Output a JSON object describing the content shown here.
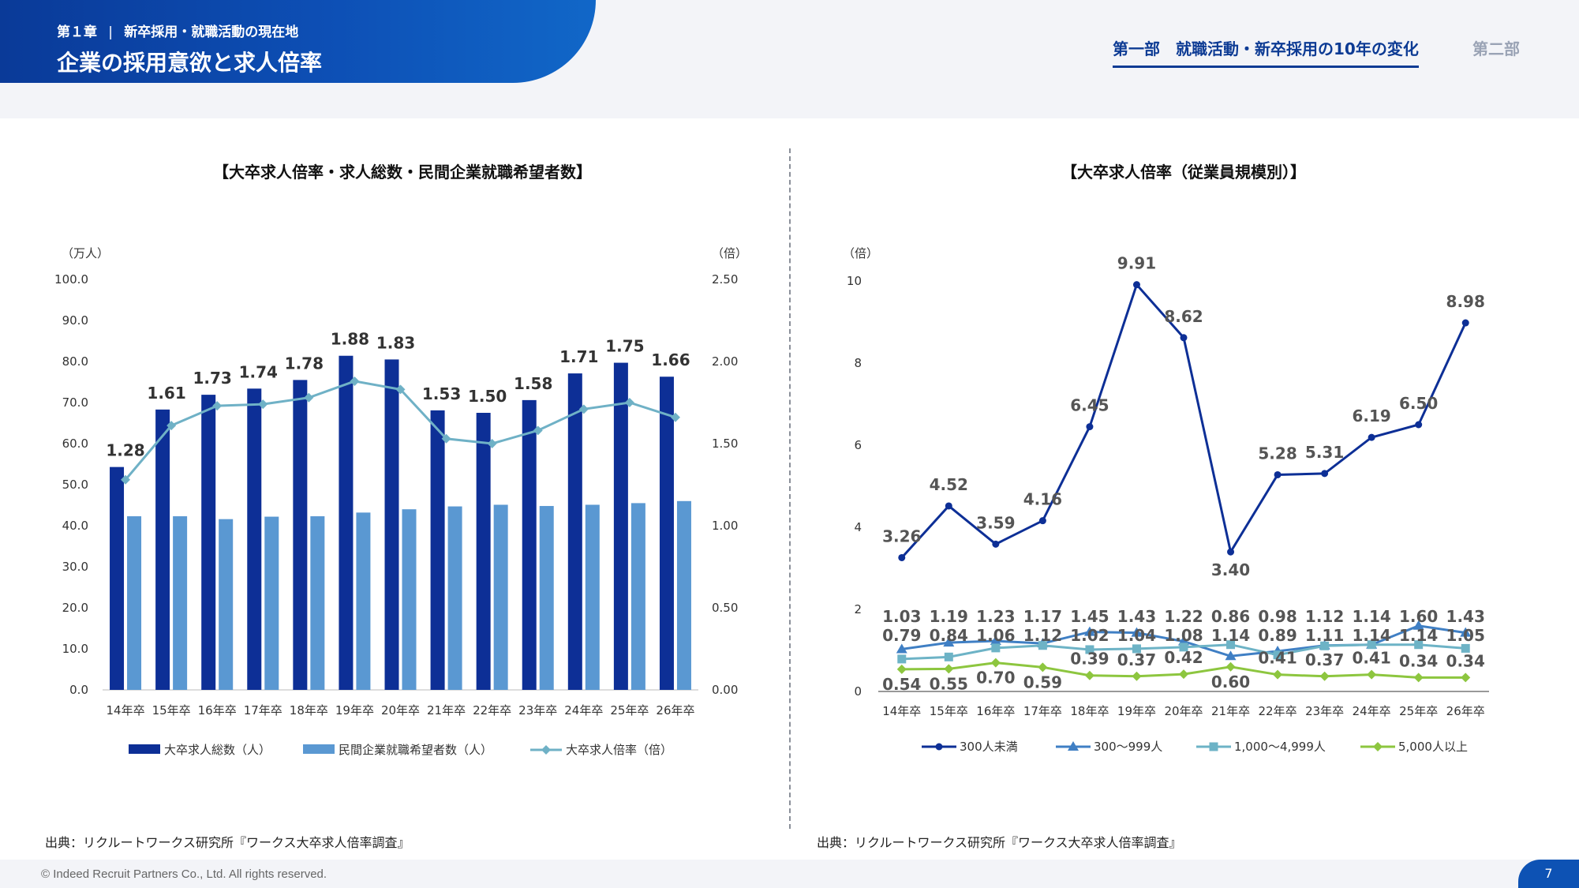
{
  "header": {
    "chapter": "第１章",
    "section": "新卒採用・就職活動の現在地",
    "title": "企業の採用意欲と求人倍率",
    "nav_active": "第一部　就職活動・新卒採用の10年の変化",
    "nav_inactive": "第二部"
  },
  "colors": {
    "bar_dark": "#0d2f96",
    "bar_light": "#5a98d2",
    "ratio_line": "#6fb1c6",
    "s300": "#0d2f96",
    "s999": "#3f7fc4",
    "s4999": "#6db3c6",
    "s5000": "#8dc63f"
  },
  "chart_data": [
    {
      "type": "bar",
      "title": "【大卒求人倍率・求人総数・民間企業就職希望者数】",
      "ylabel_left": "（万人）",
      "ylabel_right": "（倍）",
      "ylim_left": [
        0,
        100
      ],
      "ylim_right": [
        0,
        2.5
      ],
      "yticks_left": [
        "0.0",
        "10.0",
        "20.0",
        "30.0",
        "40.0",
        "50.0",
        "60.0",
        "70.0",
        "80.0",
        "90.0",
        "100.0"
      ],
      "yticks_right": [
        "0.00",
        "0.50",
        "1.00",
        "1.50",
        "2.00",
        "2.50"
      ],
      "categories": [
        "14年卒",
        "15年卒",
        "16年卒",
        "17年卒",
        "18年卒",
        "19年卒",
        "20年卒",
        "21年卒",
        "22年卒",
        "23年卒",
        "24年卒",
        "25年卒",
        "26年卒"
      ],
      "series": [
        {
          "name": "大卒求人総数（人）",
          "kind": "bar",
          "axis": "left",
          "values": [
            54.3,
            68.3,
            71.9,
            73.4,
            75.5,
            81.4,
            80.5,
            68.1,
            67.5,
            70.6,
            77.1,
            79.7,
            76.3
          ]
        },
        {
          "name": "民間企業就職希望者数（人）",
          "kind": "bar",
          "axis": "left",
          "values": [
            42.3,
            42.3,
            41.6,
            42.2,
            42.3,
            43.2,
            44.0,
            44.7,
            45.1,
            44.8,
            45.1,
            45.5,
            46.0
          ]
        },
        {
          "name": "大卒求人倍率（倍）",
          "kind": "line",
          "axis": "right",
          "values": [
            1.28,
            1.61,
            1.73,
            1.74,
            1.78,
            1.88,
            1.83,
            1.53,
            1.5,
            1.58,
            1.71,
            1.75,
            1.66
          ],
          "labels": [
            "1.28",
            "1.61",
            "1.73",
            "1.74",
            "1.78",
            "1.88",
            "1.83",
            "1.53",
            "1.50",
            "1.58",
            "1.71",
            "1.75",
            "1.66"
          ]
        }
      ]
    },
    {
      "type": "line",
      "title": "【大卒求人倍率（従業員規模別）】",
      "ylabel": "（倍）",
      "ylim": [
        0,
        10
      ],
      "yticks": [
        "0",
        "2",
        "4",
        "6",
        "8",
        "10"
      ],
      "categories": [
        "14年卒",
        "15年卒",
        "16年卒",
        "17年卒",
        "18年卒",
        "19年卒",
        "20年卒",
        "21年卒",
        "22年卒",
        "23年卒",
        "24年卒",
        "25年卒",
        "26年卒"
      ],
      "series": [
        {
          "name": "300人未満",
          "values": [
            3.26,
            4.52,
            3.59,
            4.16,
            6.45,
            9.91,
            8.62,
            3.4,
            5.28,
            5.31,
            6.19,
            6.5,
            8.98
          ],
          "labels": [
            "3.26",
            "4.52",
            "3.59",
            "4.16",
            "6.45",
            "9.91",
            "8.62",
            "3.40",
            "5.28",
            "5.31",
            "6.19",
            "6.50",
            "8.98"
          ]
        },
        {
          "name": "300～999人",
          "values": [
            1.03,
            1.19,
            1.23,
            1.17,
            1.45,
            1.43,
            1.22,
            0.86,
            0.98,
            1.12,
            1.14,
            1.6,
            1.43
          ],
          "labels": [
            "1.03",
            "1.19",
            "1.23",
            "1.17",
            "1.45",
            "1.43",
            "1.22",
            "0.86",
            "0.98",
            "1.12",
            "1.14",
            "1.60",
            "1.43"
          ]
        },
        {
          "name": "1,000～4,999人",
          "values": [
            0.79,
            0.84,
            1.06,
            1.12,
            1.02,
            1.04,
            1.08,
            1.14,
            0.89,
            1.11,
            1.14,
            1.14,
            1.05
          ],
          "labels": [
            "0.79",
            "0.84",
            "1.06",
            "1.12",
            "1.02",
            "1.04",
            "1.08",
            "1.14",
            "0.89",
            "1.11",
            "1.14",
            "1.14",
            "1.05"
          ]
        },
        {
          "name": "5,000人以上",
          "values": [
            0.54,
            0.55,
            0.7,
            0.59,
            0.39,
            0.37,
            0.42,
            0.6,
            0.41,
            0.37,
            0.41,
            0.34,
            0.34
          ],
          "labels": [
            "0.54",
            "0.55",
            "0.70",
            "0.59",
            "0.39",
            "0.37",
            "0.42",
            "0.60",
            "0.41",
            "0.37",
            "0.41",
            "0.34",
            "0.34"
          ]
        }
      ]
    }
  ],
  "sources": {
    "left": "出典：リクルートワークス研究所『ワークス大卒求人倍率調査』",
    "right": "出典：リクルートワークス研究所『ワークス大卒求人倍率調査』"
  },
  "footer": {
    "copyright": "© Indeed Recruit Partners Co., Ltd. All rights reserved.",
    "page": "7"
  }
}
